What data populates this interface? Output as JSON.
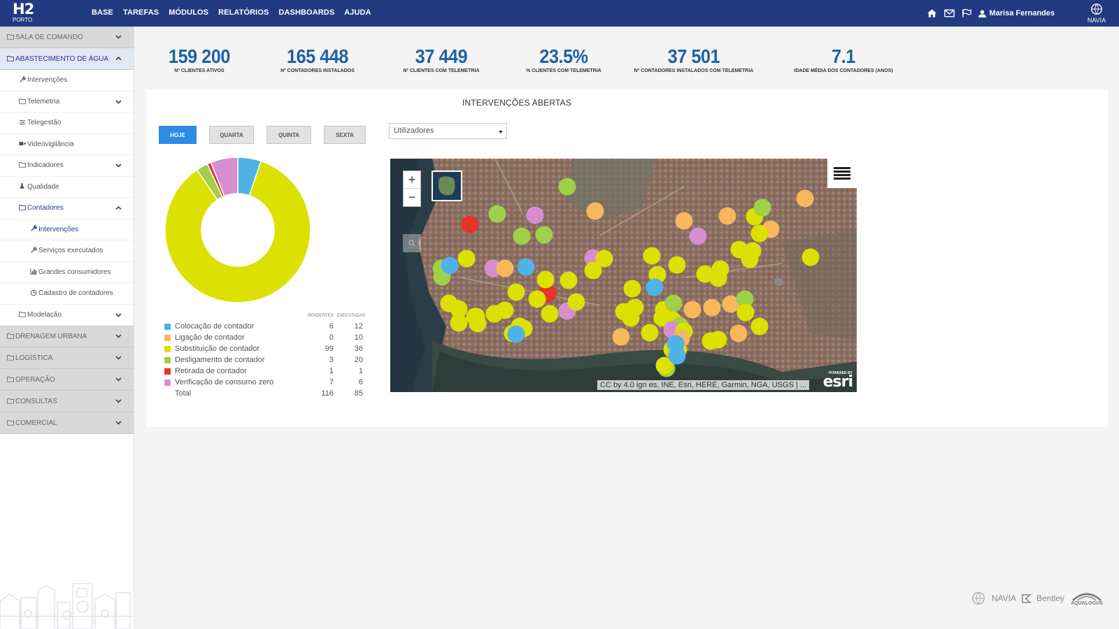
{
  "app": {
    "logo_main": "H2",
    "logo_sub": "PORTO",
    "nav": [
      "BASE",
      "TAREFAS",
      "MÓDULOS",
      "RELATÓRIOS",
      "DASHBOARDS",
      "AJUDA"
    ],
    "user": "Marisa Fernandes",
    "brand_right": "NAVIA"
  },
  "sidebar": {
    "items": [
      {
        "label": "SALA DE COMANDO",
        "level": 0,
        "icon": "folder-icon",
        "chevron": "down",
        "active": false
      },
      {
        "label": "ABASTECIMENTO DE ÁGUA",
        "level": 0,
        "icon": "folder-icon",
        "chevron": "up",
        "active": true
      },
      {
        "label": "Intervenções",
        "level": 1,
        "icon": "wrench-icon",
        "chevron": "",
        "active": false
      },
      {
        "label": "Telemetria",
        "level": 1,
        "icon": "folder-icon",
        "chevron": "down",
        "active": false
      },
      {
        "label": "Telegestão",
        "level": 1,
        "icon": "sliders-icon",
        "chevron": "",
        "active": false
      },
      {
        "label": "Videovigilância",
        "level": 1,
        "icon": "video-icon",
        "chevron": "",
        "active": false
      },
      {
        "label": "Indicadores",
        "level": 1,
        "icon": "folder-icon",
        "chevron": "down",
        "active": false
      },
      {
        "label": "Qualidade",
        "level": 1,
        "icon": "flask-icon",
        "chevron": "",
        "active": false
      },
      {
        "label": "Contadores",
        "level": 1,
        "icon": "folder-icon",
        "chevron": "up",
        "active": true
      },
      {
        "label": "Intervenções",
        "level": 2,
        "icon": "wrench-icon",
        "chevron": "",
        "active": true
      },
      {
        "label": "Serviços executados",
        "level": 2,
        "icon": "wrench-icon",
        "chevron": "",
        "active": false
      },
      {
        "label": "Grandes consumidores",
        "level": 2,
        "icon": "bar-chart-icon",
        "chevron": "",
        "active": false
      },
      {
        "label": "Cadastro de contadores",
        "level": 2,
        "icon": "clock-icon",
        "chevron": "",
        "active": false
      },
      {
        "label": "Modelação",
        "level": 1,
        "icon": "folder-icon",
        "chevron": "down",
        "active": false
      },
      {
        "label": "DRENAGEM URBANA",
        "level": 0,
        "icon": "folder-icon",
        "chevron": "down",
        "active": false
      },
      {
        "label": "LOGÍSTICA",
        "level": 0,
        "icon": "folder-icon",
        "chevron": "down",
        "active": false
      },
      {
        "label": "OPERAÇÃO",
        "level": 0,
        "icon": "folder-icon",
        "chevron": "down",
        "active": false
      },
      {
        "label": "CONSULTAS",
        "level": 0,
        "icon": "folder-icon",
        "chevron": "down",
        "active": false
      },
      {
        "label": "COMERCIAL",
        "level": 0,
        "icon": "folder-icon",
        "chevron": "down",
        "active": false
      }
    ]
  },
  "kpis": [
    {
      "value": "159 200",
      "label": "Nº CLIENTES ATIVOS"
    },
    {
      "value": "165 448",
      "label": "Nº CONTADORES INSTALADOS"
    },
    {
      "value": "37 449",
      "label": "Nº CLIENTES COM TELEMETRIA"
    },
    {
      "value": "23.5%",
      "label": "% CLIENTES COM TELEMETRIA"
    },
    {
      "value": "37 501",
      "label": "Nº CONTADORES INSTALADOS COM TELEMETRIA"
    },
    {
      "value": "7.1",
      "label": "IDADE MÉDIA DOS CONTADORES (ANOS)"
    }
  ],
  "panel": {
    "title": "INTERVENÇÕES ABERTAS",
    "tabs": [
      {
        "label": "HOJE",
        "active": true
      },
      {
        "label": "QUARTA",
        "active": false
      },
      {
        "label": "QUINTA",
        "active": false
      },
      {
        "label": "SEXTA",
        "active": false
      }
    ],
    "filter_value": "Utilizadores",
    "legend_headers": {
      "pending": "PENDENTES",
      "executed": "EXECUTADAS"
    }
  },
  "chart_data": {
    "type": "pie",
    "donut": true,
    "categories": [
      "Colocação de contador",
      "Ligação de contador",
      "Substituição de contador",
      "Desligamento de contador",
      "Retirada de contador",
      "Verificação de consumo zero"
    ],
    "series": [
      {
        "name": "PENDENTES",
        "values": [
          6,
          0,
          99,
          3,
          1,
          7
        ]
      },
      {
        "name": "EXECUTADAS",
        "values": [
          12,
          10,
          36,
          20,
          1,
          6
        ]
      }
    ],
    "colors": [
      "#4fb3e8",
      "#f7b85c",
      "#dde100",
      "#9fd048",
      "#e8332a",
      "#d58fd0"
    ],
    "total_label": "Total",
    "totals": {
      "pending": 116,
      "executed": 85
    }
  },
  "map": {
    "attribution": "CC by 4.0 ign es, INE, Esri, HERE, Garmin, NGA, USGS | ...",
    "powered_by": "POWERED BY",
    "provider": "esri",
    "zoom_in": "+",
    "zoom_out": "−"
  },
  "footer": {
    "logos": [
      "NAVIA",
      "Bentley",
      "AQUALOGUS"
    ]
  }
}
